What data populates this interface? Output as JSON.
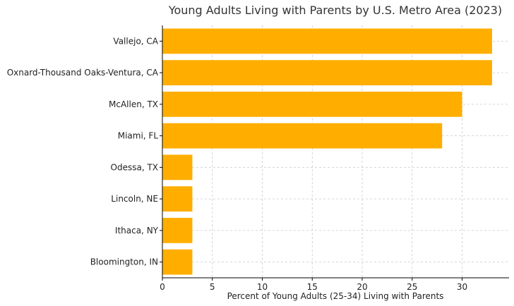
{
  "chart_data": {
    "type": "bar",
    "orientation": "horizontal",
    "title": "Young Adults Living with Parents by U.S. Metro Area (2023)",
    "xlabel": "Percent of Young Adults (25-34) Living with Parents",
    "ylabel": "",
    "categories": [
      "Vallejo, CA",
      "Oxnard-Thousand Oaks-Ventura, CA",
      "McAllen, TX",
      "Miami, FL",
      "Odessa, TX",
      "Lincoln, NE",
      "Ithaca, NY",
      "Bloomington, IN"
    ],
    "values": [
      33,
      33,
      30,
      28,
      3,
      3,
      3,
      3
    ],
    "xlim": [
      0,
      34.7
    ],
    "xticks": [
      0,
      5,
      10,
      15,
      20,
      25,
      30
    ],
    "grid": true,
    "bar_color": "#FFAE00"
  }
}
